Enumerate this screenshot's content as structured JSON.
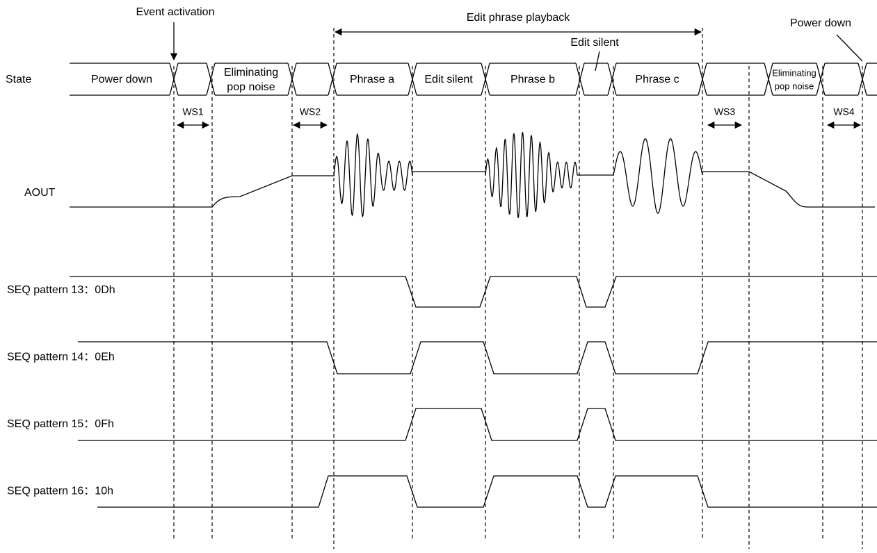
{
  "annotations": {
    "event_activation": "Event activation",
    "edit_phrase_playback": "Edit phrase playback",
    "edit_silent": "Edit silent",
    "power_down": "Power down"
  },
  "state": {
    "label": "State",
    "segments": [
      [
        "Power down"
      ],
      [
        "Eliminating",
        "pop noise"
      ],
      [
        "Phrase a"
      ],
      [
        "Edit silent"
      ],
      [
        "Phrase b"
      ],
      [
        "Phrase c"
      ],
      [
        "Eliminating",
        "pop noise"
      ]
    ]
  },
  "wait_states": [
    "WS1",
    "WS2",
    "WS3",
    "WS4"
  ],
  "signals": {
    "aout": "AOUT",
    "seq": [
      "SEQ pattern 13：0Dh",
      "SEQ pattern 14：0Eh",
      "SEQ pattern 15：0Fh",
      "SEQ pattern 16：10h"
    ]
  }
}
